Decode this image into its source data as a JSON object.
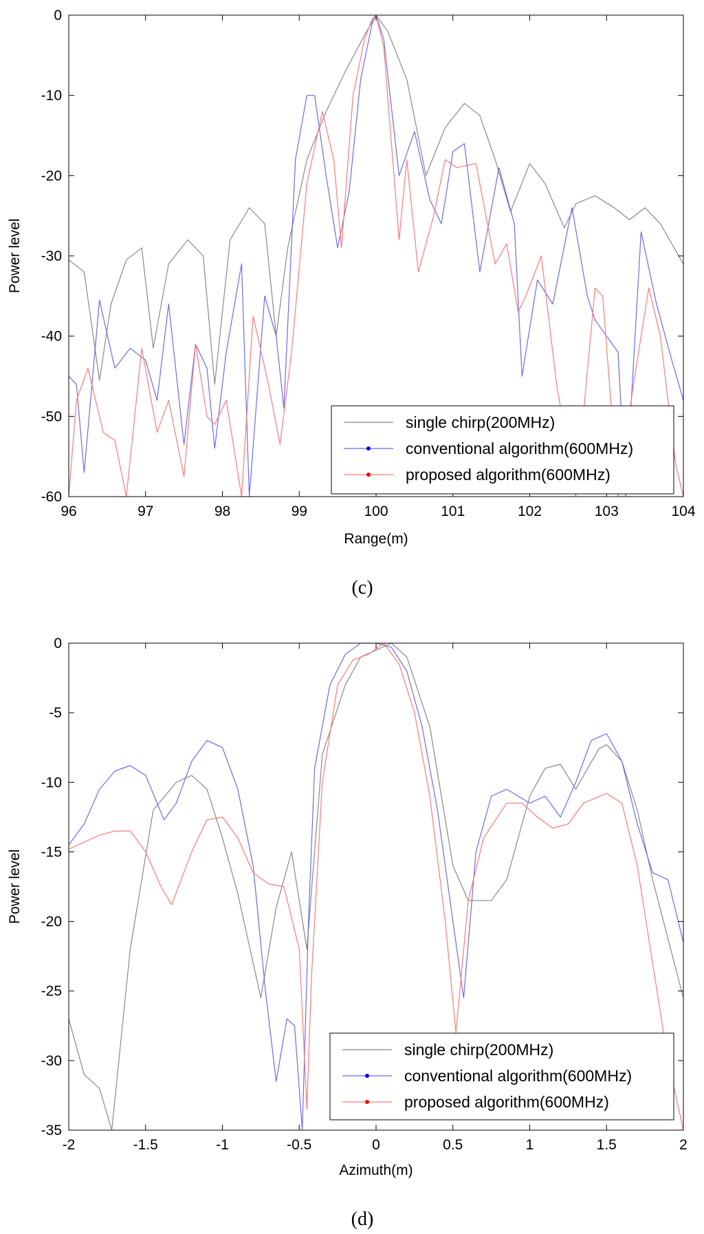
{
  "chart_data": [
    {
      "type": "line",
      "caption": "(c)",
      "xlabel": "Range(m)",
      "ylabel": "Power level",
      "xlim": [
        96,
        104
      ],
      "ylim": [
        -60,
        0
      ],
      "xticks": [
        96,
        97,
        98,
        99,
        100,
        101,
        102,
        103,
        104
      ],
      "yticks": [
        0,
        -10,
        -20,
        -30,
        -40,
        -50,
        -60
      ],
      "grid": false,
      "legend_position": "bottom-right",
      "series": [
        {
          "name": "single chirp(200MHz)",
          "color": "#888888",
          "x": [
            96.0,
            96.2,
            96.4,
            96.55,
            96.75,
            96.95,
            97.1,
            97.3,
            97.55,
            97.75,
            97.9,
            98.1,
            98.35,
            98.55,
            98.7,
            98.85,
            99.1,
            99.35,
            99.6,
            99.85,
            100.0,
            100.15,
            100.4,
            100.65,
            100.9,
            101.15,
            101.35,
            101.55,
            101.75,
            102.0,
            102.2,
            102.45,
            102.6,
            102.85,
            103.1,
            103.3,
            103.5,
            103.7,
            104.0
          ],
          "y": [
            -30.5,
            -32,
            -45.5,
            -36,
            -30.5,
            -29,
            -41.5,
            -31,
            -28,
            -30,
            -46,
            -28,
            -24,
            -26,
            -40,
            -29,
            -18,
            -12,
            -7,
            -2.5,
            0,
            -2,
            -8,
            -20,
            -14,
            -11,
            -12.5,
            -18,
            -24.5,
            -18.5,
            -21,
            -26.5,
            -23.5,
            -22.5,
            -24,
            -25.5,
            -24,
            -26,
            -31
          ]
        },
        {
          "name": "conventional algorithm(600MHz)",
          "color": "#6a6aee",
          "x": [
            96.0,
            96.1,
            96.2,
            96.4,
            96.6,
            96.8,
            97.0,
            97.15,
            97.3,
            97.5,
            97.65,
            97.8,
            97.9,
            98.05,
            98.25,
            98.35,
            98.55,
            98.7,
            98.8,
            98.95,
            99.1,
            99.2,
            99.35,
            99.5,
            99.65,
            99.8,
            99.95,
            100.0,
            100.1,
            100.3,
            100.5,
            100.7,
            100.85,
            101.0,
            101.15,
            101.35,
            101.6,
            101.8,
            101.9,
            102.1,
            102.3,
            102.55,
            102.75,
            102.85,
            103.0,
            103.15,
            103.25,
            103.45,
            103.65,
            103.85,
            104.0
          ],
          "y": [
            -45,
            -46,
            -57,
            -35.5,
            -44,
            -41.5,
            -43,
            -48,
            -36,
            -53.5,
            -41,
            -44,
            -54,
            -42,
            -31,
            -60,
            -35,
            -40,
            -49,
            -18,
            -10,
            -10,
            -20,
            -29,
            -22,
            -8,
            -1,
            0,
            -3,
            -20,
            -14.5,
            -23,
            -26,
            -17,
            -16,
            -32,
            -19,
            -26,
            -45,
            -33,
            -36,
            -24,
            -35,
            -38,
            -40,
            -42,
            -60,
            -27,
            -36,
            -43,
            -48
          ]
        },
        {
          "name": "proposed algorithm(600MHz)",
          "color": "#ff7777",
          "x": [
            96.0,
            96.1,
            96.25,
            96.45,
            96.6,
            96.75,
            96.95,
            97.15,
            97.3,
            97.5,
            97.65,
            97.8,
            97.9,
            98.05,
            98.25,
            98.4,
            98.6,
            98.75,
            98.9,
            99.1,
            99.3,
            99.45,
            99.55,
            99.7,
            99.85,
            99.95,
            100.0,
            100.1,
            100.3,
            100.4,
            100.55,
            100.75,
            100.9,
            101.05,
            101.3,
            101.55,
            101.7,
            101.85,
            101.95,
            102.15,
            102.35,
            102.6,
            102.85,
            102.95,
            103.15,
            103.35,
            103.55,
            103.7,
            103.9,
            104.0
          ],
          "y": [
            -60,
            -48,
            -44,
            -52,
            -53,
            -60,
            -41.5,
            -52,
            -48,
            -57.5,
            -41,
            -50,
            -51,
            -48,
            -60,
            -37.5,
            -46,
            -53.5,
            -42,
            -21,
            -12,
            -18,
            -29,
            -10,
            -3,
            -0.5,
            0,
            -4,
            -28,
            -18,
            -32,
            -25,
            -18,
            -19,
            -18.5,
            -31,
            -28.5,
            -37,
            -35,
            -30,
            -46,
            -60,
            -34,
            -35,
            -60,
            -46,
            -34,
            -40,
            -56,
            -60
          ]
        }
      ]
    },
    {
      "type": "line",
      "caption": "(d)",
      "xlabel": "Azimuth(m)",
      "ylabel": "Power level",
      "xlim": [
        -2,
        2
      ],
      "ylim": [
        -35,
        0
      ],
      "xticks": [
        -2,
        -1.5,
        -1,
        -0.5,
        0,
        0.5,
        1,
        1.5,
        2
      ],
      "xtick_labels": [
        "-2",
        "-1.5",
        "-1",
        "-0.5",
        "0",
        "0.5",
        "1",
        "1.5",
        "2"
      ],
      "yticks": [
        0,
        -5,
        -10,
        -15,
        -20,
        -25,
        -30,
        -35
      ],
      "grid": false,
      "legend_position": "bottom-right",
      "series": [
        {
          "name": "single chirp(200MHz)",
          "color": "#888888",
          "x": [
            -2.0,
            -1.9,
            -1.8,
            -1.72,
            -1.6,
            -1.45,
            -1.3,
            -1.2,
            -1.1,
            -1.0,
            -0.9,
            -0.75,
            -0.65,
            -0.55,
            -0.45,
            -0.35,
            -0.2,
            -0.1,
            0.0,
            0.1,
            0.2,
            0.35,
            0.5,
            0.6,
            0.75,
            0.85,
            1.0,
            1.1,
            1.2,
            1.3,
            1.45,
            1.5,
            1.6,
            1.7,
            1.8,
            2.0
          ],
          "y": [
            -27,
            -31,
            -32,
            -35,
            -22,
            -12,
            -10,
            -9.5,
            -10.5,
            -14,
            -18,
            -25.5,
            -19,
            -15,
            -22,
            -8,
            -3,
            -1,
            -0.5,
            0,
            -1,
            -6,
            -16,
            -18.5,
            -18.5,
            -17,
            -11,
            -9,
            -8.7,
            -10.5,
            -7.6,
            -7.3,
            -8.5,
            -12,
            -17,
            -25.5
          ]
        },
        {
          "name": "conventional algorithm(600MHz)",
          "color": "#6a6aee",
          "x": [
            -2.0,
            -1.9,
            -1.8,
            -1.7,
            -1.6,
            -1.5,
            -1.38,
            -1.3,
            -1.2,
            -1.1,
            -1.0,
            -0.9,
            -0.8,
            -0.72,
            -0.65,
            -0.58,
            -0.53,
            -0.48,
            -0.44,
            -0.4,
            -0.3,
            -0.2,
            -0.1,
            0.0,
            0.1,
            0.2,
            0.3,
            0.4,
            0.5,
            0.57,
            0.65,
            0.75,
            0.85,
            1.0,
            1.1,
            1.2,
            1.3,
            1.4,
            1.5,
            1.6,
            1.7,
            1.8,
            1.9,
            2.0
          ],
          "y": [
            -14.5,
            -13,
            -10.5,
            -9.2,
            -8.8,
            -9.5,
            -12.7,
            -11.5,
            -8.5,
            -7,
            -7.5,
            -10.5,
            -16,
            -25,
            -31.5,
            -27,
            -27.5,
            -35,
            -20,
            -9,
            -3,
            -0.8,
            0,
            0,
            -0.3,
            -2,
            -6,
            -12,
            -20,
            -25.5,
            -15,
            -11,
            -10.5,
            -11.5,
            -11,
            -12.5,
            -10,
            -7,
            -6.5,
            -8.5,
            -13,
            -16.5,
            -17,
            -21.5
          ]
        },
        {
          "name": "proposed algorithm(600MHz)",
          "color": "#ff7777",
          "x": [
            -2.0,
            -1.9,
            -1.8,
            -1.7,
            -1.6,
            -1.5,
            -1.4,
            -1.33,
            -1.2,
            -1.1,
            -1.0,
            -0.9,
            -0.8,
            -0.7,
            -0.6,
            -0.5,
            -0.45,
            -0.42,
            -0.35,
            -0.25,
            -0.15,
            -0.05,
            0.05,
            0.15,
            0.25,
            0.35,
            0.45,
            0.52,
            0.6,
            0.7,
            0.85,
            0.95,
            1.05,
            1.15,
            1.25,
            1.35,
            1.5,
            1.6,
            1.7,
            1.8,
            1.9,
            2.0
          ],
          "y": [
            -14.8,
            -14.3,
            -13.8,
            -13.5,
            -13.5,
            -15,
            -17.5,
            -18.8,
            -15,
            -12.7,
            -12.5,
            -14,
            -16.5,
            -17.3,
            -17.5,
            -22,
            -33.5,
            -24,
            -10,
            -3,
            -1.2,
            -0.8,
            0,
            -1.5,
            -5,
            -11,
            -20,
            -28,
            -18.5,
            -14,
            -11.5,
            -11.5,
            -12.5,
            -13.3,
            -13,
            -11.5,
            -10.8,
            -11.5,
            -16,
            -23,
            -30,
            -35
          ]
        }
      ]
    }
  ]
}
